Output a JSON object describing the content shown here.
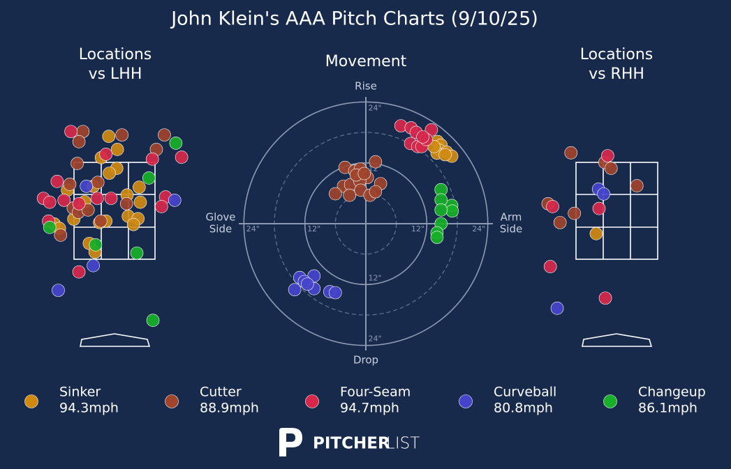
{
  "title": "John Klein's AAA Pitch Charts (9/10/25)",
  "footer": {
    "brand_bold": "PITCHER",
    "brand_light": "LIST"
  },
  "chart_data": [
    {
      "type": "scatter",
      "title": [
        "Locations",
        "vs LHH"
      ],
      "xlim": [
        -1.4,
        1.4
      ],
      "ylim": [
        -0.35,
        4.4
      ],
      "series": [
        {
          "name": "Sinker",
          "speed": "94.3mph",
          "color": "#d08a12",
          "x": [
            -0.1,
            0.05,
            -0.23,
            0.04,
            -0.09,
            -0.82,
            -0.37,
            0.43,
            0.22,
            0.45,
            -0.52,
            -0.71,
            -0.15,
            0.24,
            0.41,
            0.33,
            -0.26,
            -1.05,
            -0.96,
            -0.44,
            -0.34
          ],
          "y": [
            4.03,
            3.76,
            3.59,
            3.37,
            3.27,
            2.92,
            3.0,
            2.98,
            2.82,
            2.67,
            2.68,
            2.32,
            2.28,
            2.38,
            2.33,
            2.21,
            2.25,
            2.22,
            2.13,
            1.82,
            1.64
          ]
        },
        {
          "name": "Cutter",
          "speed": "88.9mph",
          "color": "#a0442c",
          "x": [
            -0.55,
            0.13,
            -0.62,
            0.87,
            0.73,
            -0.65,
            -0.29,
            -0.78,
            -0.72,
            0.21,
            -0.63,
            -0.46,
            -0.24,
            -0.94
          ],
          "y": [
            4.13,
            4.06,
            3.92,
            4.06,
            3.76,
            3.47,
            3.08,
            3.04,
            2.55,
            2.64,
            2.46,
            2.51,
            2.28,
            1.99
          ]
        },
        {
          "name": "Four-Seam",
          "speed": "94.7mph",
          "color": "#d7284b",
          "x": [
            -0.76,
            -0.15,
            0.66,
            1.17,
            -1.0,
            -1.24,
            -1.13,
            -0.88,
            -0.62,
            -0.3,
            -0.06,
            0.89,
            0.82,
            -1.15,
            -0.62
          ],
          "y": [
            4.13,
            3.66,
            3.56,
            3.6,
            3.1,
            2.75,
            2.67,
            2.71,
            2.64,
            2.75,
            2.75,
            2.78,
            2.58,
            2.28,
            1.23
          ]
        },
        {
          "name": "Curveball",
          "speed": "80.8mph",
          "color": "#4545cc",
          "x": [
            -0.49,
            1.05,
            -0.37,
            -0.98
          ],
          "y": [
            3.0,
            2.71,
            1.36,
            0.85
          ]
        },
        {
          "name": "Changeup",
          "speed": "86.1mph",
          "color": "#18b028",
          "x": [
            1.07,
            0.6,
            -1.13,
            0.39,
            0.67,
            -0.33
          ],
          "y": [
            3.89,
            3.17,
            2.15,
            1.62,
            0.23,
            1.79
          ]
        }
      ]
    },
    {
      "type": "scatter",
      "title": [
        "Movement"
      ],
      "xlim": [
        -25,
        25
      ],
      "ylim": [
        -25,
        25
      ],
      "minor_rings": [
        6,
        18
      ],
      "labels": {
        "top": "Rise",
        "bottom": "Drop",
        "left": [
          "Glove",
          "Side"
        ],
        "right": [
          "Arm",
          "Side"
        ]
      },
      "xticks": [
        {
          "value": -24,
          "label": "24\""
        },
        {
          "value": -12,
          "label": "12\""
        },
        {
          "value": 12,
          "label": "12\""
        },
        {
          "value": 24,
          "label": "24\""
        }
      ],
      "yticks": [
        {
          "value": 24,
          "label": "24\""
        },
        {
          "value": 12,
          "label": "12\""
        },
        {
          "value": -12,
          "label": "12\""
        },
        {
          "value": -24,
          "label": "24\""
        }
      ],
      "series": [
        {
          "name": "Sinker",
          "color": "#d08a12",
          "x": [
            14.1,
            14.8,
            14.5,
            14.0,
            15.9,
            16.9,
            15.6,
            13.4
          ],
          "y": [
            16.2,
            15.5,
            14.5,
            13.9,
            14.1,
            13.3,
            13.6,
            15.2
          ]
        },
        {
          "name": "Cutter",
          "color": "#a0442c",
          "x": [
            -4.1,
            -2.2,
            -1.1,
            1.9,
            0.3,
            2.9,
            -4.4,
            -3.0,
            -1.2,
            -6.0,
            -3.2,
            -1.0,
            0.8,
            1.9,
            -1.9,
            -0.3
          ],
          "y": [
            11.1,
            10.4,
            10.8,
            12.2,
            9.1,
            7.9,
            7.4,
            7.7,
            8.4,
            5.9,
            5.6,
            6.6,
            5.6,
            6.3,
            9.6,
            9.9
          ]
        },
        {
          "name": "Four-Seam",
          "color": "#d7284b",
          "x": [
            6.9,
            8.9,
            9.9,
            12.9,
            8.8,
            10.2,
            11.0,
            11.9,
            11.2
          ],
          "y": [
            19.3,
            18.9,
            18.0,
            18.5,
            15.8,
            15.2,
            15.2,
            16.6,
            17.1
          ]
        },
        {
          "name": "Curveball",
          "color": "#4545cc",
          "x": [
            -13.0,
            -10.2,
            -12.1,
            -14.0,
            -10.2,
            -7.1,
            -6.0,
            -11.5
          ],
          "y": [
            -10.6,
            -10.3,
            -11.4,
            -13.0,
            -12.8,
            -13.4,
            -13.6,
            -11.9
          ]
        },
        {
          "name": "Changeup",
          "color": "#18b028",
          "x": [
            14.8,
            16.9,
            14.8,
            17.0,
            14.8,
            14.8,
            14.0,
            14.0
          ],
          "y": [
            6.7,
            3.6,
            4.7,
            2.5,
            2.7,
            0,
            -1.8,
            -2.7
          ]
        }
      ]
    },
    {
      "type": "scatter",
      "title": [
        "Locations",
        "vs RHH"
      ],
      "xlim": [
        -1.4,
        1.4
      ],
      "ylim": [
        -0.35,
        4.4
      ],
      "series": [
        {
          "name": "Sinker",
          "color": "#d08a12",
          "x": [
            -0.36
          ],
          "y": [
            2.02
          ]
        },
        {
          "name": "Cutter",
          "color": "#a0442c",
          "x": [
            -0.8,
            -0.21,
            -0.1,
            0.35,
            -1.2,
            -0.74,
            -0.99
          ],
          "y": [
            3.69,
            3.49,
            3.37,
            3.01,
            2.64,
            2.44,
            2.25
          ]
        },
        {
          "name": "Four-Seam",
          "color": "#d7284b",
          "x": [
            -0.16,
            -1.12,
            -0.31,
            -1.16,
            -0.2
          ],
          "y": [
            3.63,
            2.58,
            2.54,
            1.34,
            0.69
          ]
        },
        {
          "name": "Curveball",
          "color": "#4545cc",
          "x": [
            -0.32,
            -0.23,
            -1.04
          ],
          "y": [
            2.94,
            2.84,
            0.48
          ]
        },
        {
          "name": "Changeup",
          "color": "#18b028",
          "x": [],
          "y": []
        }
      ]
    }
  ]
}
